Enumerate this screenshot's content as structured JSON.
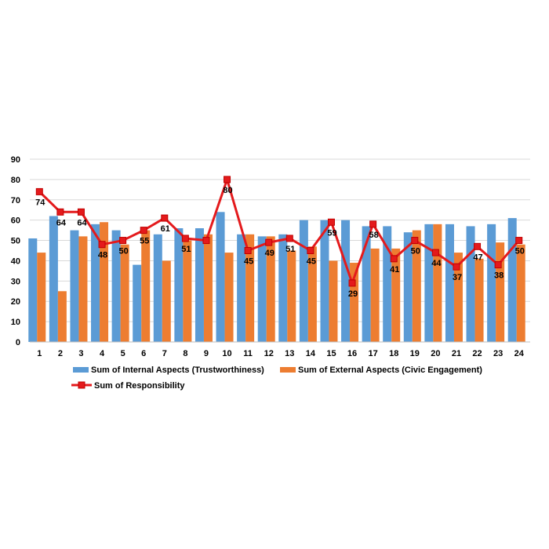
{
  "chart_data": {
    "type": "bar",
    "categories": [
      "1",
      "2",
      "3",
      "4",
      "5",
      "6",
      "7",
      "8",
      "9",
      "10",
      "11",
      "12",
      "13",
      "14",
      "15",
      "16",
      "17",
      "18",
      "19",
      "20",
      "21",
      "22",
      "23",
      "24"
    ],
    "ylim": [
      0,
      90
    ],
    "yticks": [
      0,
      10,
      20,
      30,
      40,
      50,
      60,
      70,
      80,
      90
    ],
    "grid": true,
    "legend_position": "bottom",
    "series": [
      {
        "name": "Sum of Internal Aspects (Trustworthiness)",
        "type": "bar",
        "color": "#5B9BD5",
        "values": [
          51,
          62,
          55,
          58,
          55,
          38,
          53,
          56,
          56,
          64,
          53,
          52,
          53,
          60,
          60,
          60,
          57,
          57,
          54,
          58,
          58,
          57,
          58,
          61
        ]
      },
      {
        "name": "Sum of External Aspects (Civic Engagement)",
        "type": "bar",
        "color": "#ED7D31",
        "values": [
          44,
          25,
          52,
          59,
          48,
          55,
          40,
          50,
          53,
          44,
          53,
          52,
          45,
          47,
          40,
          39,
          46,
          46,
          55,
          58,
          44,
          41,
          49,
          48
        ]
      },
      {
        "name": "Sum of Responsibility",
        "type": "line",
        "color": "#E41A1C",
        "values": [
          74,
          64,
          64,
          48,
          50,
          55,
          61,
          51,
          50,
          80,
          45,
          49,
          51,
          45,
          59,
          29,
          58,
          41,
          50,
          44,
          37,
          47,
          38,
          50
        ],
        "data_labels": [
          "74",
          "64",
          "64",
          "48",
          "50",
          "55",
          "61",
          "51",
          "",
          "80",
          "45",
          "49",
          "51",
          "45",
          "59",
          "29",
          "58",
          "41",
          "50",
          "44",
          "37",
          "47",
          "38",
          "50"
        ]
      }
    ]
  }
}
